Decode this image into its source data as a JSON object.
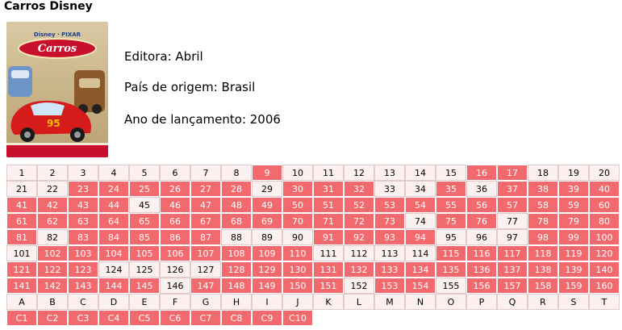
{
  "title": "Carros Disney",
  "cover": {
    "logo_text": "Carros",
    "brand_text": "Disney · PIXAR"
  },
  "info": {
    "editora": "Editora: Abril",
    "pais": "País de origem: Brasil",
    "ano": "Ano de lançamento: 2006"
  },
  "colors": {
    "collected": "#f36a6e",
    "missing": "#fdf0f0"
  },
  "stickers": [
    "1",
    "2",
    "3",
    "4",
    "5",
    "6",
    "7",
    "8",
    "9",
    "10",
    "11",
    "12",
    "13",
    "14",
    "15",
    "16",
    "17",
    "18",
    "19",
    "20",
    "21",
    "22",
    "23",
    "24",
    "25",
    "26",
    "27",
    "28",
    "29",
    "30",
    "31",
    "32",
    "33",
    "34",
    "35",
    "36",
    "37",
    "38",
    "39",
    "40",
    "41",
    "42",
    "43",
    "44",
    "45",
    "46",
    "47",
    "48",
    "49",
    "50",
    "51",
    "52",
    "53",
    "54",
    "55",
    "56",
    "57",
    "58",
    "59",
    "60",
    "61",
    "62",
    "63",
    "64",
    "65",
    "66",
    "67",
    "68",
    "69",
    "70",
    "71",
    "72",
    "73",
    "74",
    "75",
    "76",
    "77",
    "78",
    "79",
    "80",
    "81",
    "82",
    "83",
    "84",
    "85",
    "86",
    "87",
    "88",
    "89",
    "90",
    "91",
    "92",
    "93",
    "94",
    "95",
    "96",
    "97",
    "98",
    "99",
    "100",
    "101",
    "102",
    "103",
    "104",
    "105",
    "106",
    "107",
    "108",
    "109",
    "110",
    "111",
    "112",
    "113",
    "114",
    "115",
    "116",
    "117",
    "118",
    "119",
    "120",
    "121",
    "122",
    "123",
    "124",
    "125",
    "126",
    "127",
    "128",
    "129",
    "130",
    "131",
    "132",
    "133",
    "134",
    "135",
    "136",
    "137",
    "138",
    "139",
    "140",
    "141",
    "142",
    "143",
    "144",
    "145",
    "146",
    "147",
    "148",
    "149",
    "150",
    "151",
    "152",
    "153",
    "154",
    "155",
    "156",
    "157",
    "158",
    "159",
    "160",
    "A",
    "B",
    "C",
    "D",
    "E",
    "F",
    "G",
    "H",
    "I",
    "J",
    "K",
    "L",
    "M",
    "N",
    "O",
    "P",
    "Q",
    "R",
    "S",
    "T",
    "C1",
    "C2",
    "C3",
    "C4",
    "C5",
    "C6",
    "C7",
    "C8",
    "C9",
    "C10"
  ],
  "missing": [
    "1",
    "2",
    "3",
    "4",
    "5",
    "6",
    "7",
    "8",
    "10",
    "11",
    "12",
    "13",
    "14",
    "15",
    "18",
    "19",
    "20",
    "21",
    "22",
    "29",
    "33",
    "34",
    "36",
    "45",
    "74",
    "77",
    "82",
    "88",
    "89",
    "90",
    "95",
    "96",
    "97",
    "101",
    "111",
    "112",
    "113",
    "114",
    "124",
    "125",
    "126",
    "127",
    "146",
    "152",
    "155",
    "A",
    "B",
    "C",
    "D",
    "E",
    "F",
    "G",
    "H",
    "I",
    "J",
    "K",
    "L",
    "M",
    "N",
    "O",
    "P",
    "Q",
    "R",
    "S",
    "T"
  ]
}
